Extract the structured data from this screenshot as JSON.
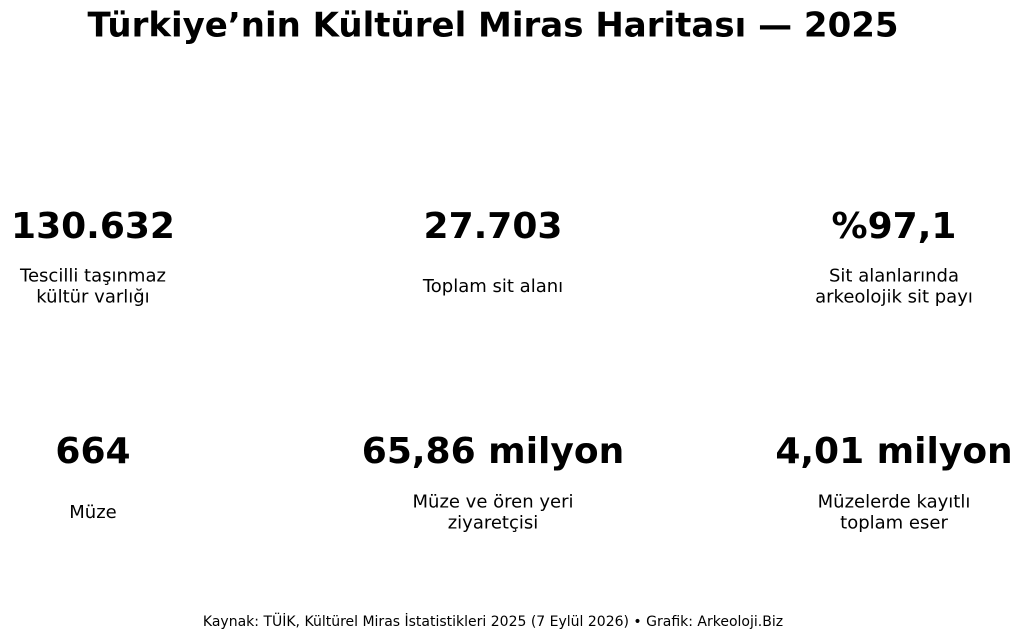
{
  "header": {
    "title": "Türkiye’nin Kültürel Miras Haritası — 2025"
  },
  "kpis": [
    {
      "value": "130.632",
      "label_lines": [
        "Tescilli taşınmaz",
        "kültür varlığı"
      ]
    },
    {
      "value": "27.703",
      "label_lines": [
        "Toplam sit alanı"
      ]
    },
    {
      "value": "%97,1",
      "label_lines": [
        "Sit alanlarında",
        "arkeolojik sit payı"
      ]
    },
    {
      "value": "664",
      "label_lines": [
        "Müze"
      ]
    },
    {
      "value": "65,86 milyon",
      "label_lines": [
        "Müze ve ören yeri",
        "ziyaretçisi"
      ]
    },
    {
      "value": "4,01 milyon",
      "label_lines": [
        "Müzelerde kayıtlı",
        "toplam eser"
      ]
    }
  ],
  "footer": {
    "source": "Kaynak: TÜİK, Kültürel Miras İstatistikleri 2025 (7 Eylül 2026) • Grafik: Arkeoloji.Biz"
  }
}
